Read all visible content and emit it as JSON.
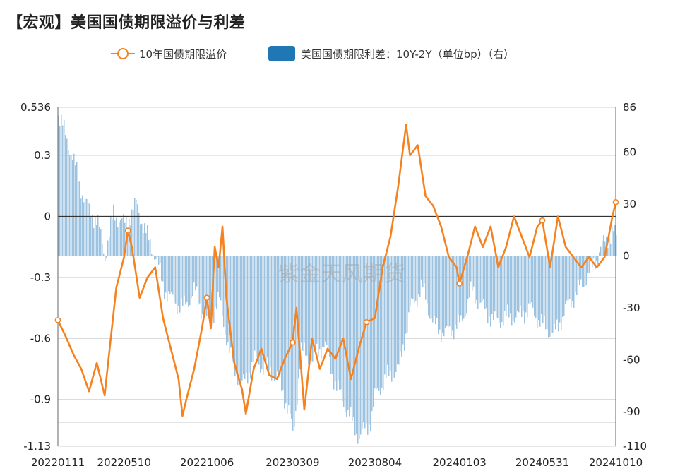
{
  "header": {
    "title": "【宏观】美国国债期限溢价与利差"
  },
  "watermark": "紫金天风期货",
  "colors": {
    "line": "#F5821F",
    "bar": "#9DC3E1",
    "legend_bar": "#1F77B4",
    "grid": "#cfcfcf"
  },
  "chart_data": {
    "type": "line+bar",
    "title": "",
    "legend_position": "top",
    "grid": true,
    "x_tick_labels": [
      "20220111",
      "20220510",
      "20221006",
      "20230309",
      "20230804",
      "20240103",
      "20240531",
      "20241010"
    ],
    "left_axis": {
      "ticks": [
        "0.536",
        "0.3",
        "0",
        "-0.3",
        "-0.6",
        "-0.9",
        "-1.13"
      ],
      "range": [
        -1.13,
        0.536
      ]
    },
    "right_axis": {
      "ticks": [
        "86",
        "60",
        "30",
        "0",
        "-30",
        "-60",
        "-90",
        "-110"
      ],
      "range": [
        -110,
        86
      ]
    },
    "series": [
      {
        "name": "10年国债期限溢价",
        "axis": "left",
        "kind": "line",
        "points": [
          [
            "20220111",
            -0.51
          ],
          [
            "20220125",
            -0.59
          ],
          [
            "20220208",
            -0.68
          ],
          [
            "20220222",
            -0.75
          ],
          [
            "20220308",
            -0.86
          ],
          [
            "20220322",
            -0.72
          ],
          [
            "20220405",
            -0.88
          ],
          [
            "20220412",
            -0.7
          ],
          [
            "20220426",
            -0.35
          ],
          [
            "20220510",
            -0.2
          ],
          [
            "20220517",
            -0.07
          ],
          [
            "20220524",
            -0.15
          ],
          [
            "20220607",
            -0.4
          ],
          [
            "20220621",
            -0.3
          ],
          [
            "20220705",
            -0.25
          ],
          [
            "20220719",
            -0.5
          ],
          [
            "20220802",
            -0.65
          ],
          [
            "20220816",
            -0.8
          ],
          [
            "20220823",
            -0.98
          ],
          [
            "20220830",
            -0.9
          ],
          [
            "20220913",
            -0.75
          ],
          [
            "20220927",
            -0.55
          ],
          [
            "20221006",
            -0.4
          ],
          [
            "20221013",
            -0.55
          ],
          [
            "20221020",
            -0.15
          ],
          [
            "20221027",
            -0.25
          ],
          [
            "20221103",
            -0.05
          ],
          [
            "20221110",
            -0.4
          ],
          [
            "20221124",
            -0.72
          ],
          [
            "20221208",
            -0.85
          ],
          [
            "20221215",
            -0.97
          ],
          [
            "20221229",
            -0.75
          ],
          [
            "20230112",
            -0.65
          ],
          [
            "20230126",
            -0.78
          ],
          [
            "20230209",
            -0.8
          ],
          [
            "20230223",
            -0.7
          ],
          [
            "20230309",
            -0.62
          ],
          [
            "20230316",
            -0.45
          ],
          [
            "20230330",
            -0.95
          ],
          [
            "20230413",
            -0.6
          ],
          [
            "20230427",
            -0.75
          ],
          [
            "20230511",
            -0.65
          ],
          [
            "20230525",
            -0.7
          ],
          [
            "20230608",
            -0.6
          ],
          [
            "20230622",
            -0.8
          ],
          [
            "20230706",
            -0.65
          ],
          [
            "20230720",
            -0.52
          ],
          [
            "20230804",
            -0.5
          ],
          [
            "20230818",
            -0.25
          ],
          [
            "20230901",
            -0.1
          ],
          [
            "20230915",
            0.15
          ],
          [
            "20230922",
            0.3
          ],
          [
            "20230929",
            0.45
          ],
          [
            "20231006",
            0.3
          ],
          [
            "20231020",
            0.35
          ],
          [
            "20231103",
            0.1
          ],
          [
            "20231117",
            0.05
          ],
          [
            "20231201",
            -0.05
          ],
          [
            "20231215",
            -0.2
          ],
          [
            "20231229",
            -0.25
          ],
          [
            "20240103",
            -0.33
          ],
          [
            "20240117",
            -0.2
          ],
          [
            "20240131",
            -0.05
          ],
          [
            "20240214",
            -0.15
          ],
          [
            "20240228",
            -0.05
          ],
          [
            "20240313",
            -0.25
          ],
          [
            "20240327",
            -0.15
          ],
          [
            "20240410",
            0.0
          ],
          [
            "20240424",
            -0.1
          ],
          [
            "20240508",
            -0.2
          ],
          [
            "20240522",
            -0.05
          ],
          [
            "20240531",
            -0.02
          ],
          [
            "20240614",
            -0.25
          ],
          [
            "20240628",
            0.0
          ],
          [
            "20240712",
            -0.15
          ],
          [
            "20240726",
            -0.2
          ],
          [
            "20240809",
            -0.25
          ],
          [
            "20240823",
            -0.2
          ],
          [
            "20240906",
            -0.25
          ],
          [
            "20240920",
            -0.2
          ],
          [
            "20240927",
            -0.1
          ],
          [
            "20241004",
            0.0
          ],
          [
            "20241010",
            0.07
          ]
        ]
      },
      {
        "name": "美国国债期限利差：10Y-2Y（单位bp）（右）",
        "axis": "right",
        "kind": "bar",
        "points": [
          [
            "20220111",
            82
          ],
          [
            "20220201",
            62
          ],
          [
            "20220301",
            30
          ],
          [
            "20220322",
            20
          ],
          [
            "20220405",
            0
          ],
          [
            "20220420",
            25
          ],
          [
            "20220510",
            18
          ],
          [
            "20220531",
            30
          ],
          [
            "20220621",
            10
          ],
          [
            "20220705",
            0
          ],
          [
            "20220719",
            -18
          ],
          [
            "20220802",
            -25
          ],
          [
            "20220823",
            -30
          ],
          [
            "20220913",
            -20
          ],
          [
            "20221006",
            -40
          ],
          [
            "20221027",
            -25
          ],
          [
            "20221117",
            -60
          ],
          [
            "20221208",
            -75
          ],
          [
            "20221229",
            -60
          ],
          [
            "20230119",
            -65
          ],
          [
            "20230209",
            -70
          ],
          [
            "20230302",
            -90
          ],
          [
            "20230309",
            -105
          ],
          [
            "20230323",
            -55
          ],
          [
            "20230413",
            -60
          ],
          [
            "20230504",
            -50
          ],
          [
            "20230525",
            -75
          ],
          [
            "20230615",
            -90
          ],
          [
            "20230706",
            -105
          ],
          [
            "20230727",
            -95
          ],
          [
            "20230804",
            -80
          ],
          [
            "20230825",
            -70
          ],
          [
            "20230915",
            -65
          ],
          [
            "20231006",
            -30
          ],
          [
            "20231027",
            -18
          ],
          [
            "20231117",
            -40
          ],
          [
            "20231208",
            -45
          ],
          [
            "20231229",
            -40
          ],
          [
            "20240103",
            -40
          ],
          [
            "20240124",
            -20
          ],
          [
            "20240214",
            -30
          ],
          [
            "20240306",
            -38
          ],
          [
            "20240327",
            -35
          ],
          [
            "20240417",
            -35
          ],
          [
            "20240508",
            -30
          ],
          [
            "20240531",
            -40
          ],
          [
            "20240621",
            -45
          ],
          [
            "20240712",
            -30
          ],
          [
            "20240802",
            -20
          ],
          [
            "20240823",
            -10
          ],
          [
            "20240913",
            5
          ],
          [
            "20241004",
            15
          ],
          [
            "20241010",
            10
          ]
        ]
      }
    ]
  }
}
